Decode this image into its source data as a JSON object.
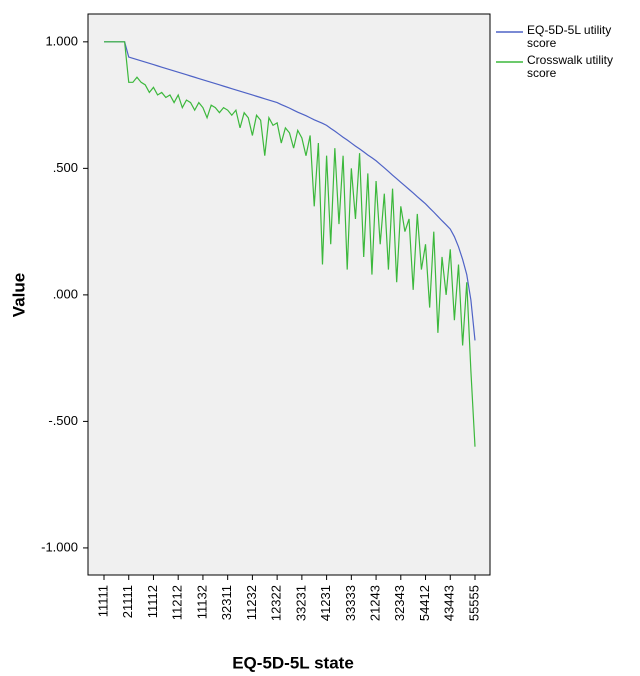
{
  "chart_data": {
    "type": "line",
    "x_label": "EQ-5D-5L state",
    "y_label": "Value",
    "categories": [
      "11111",
      null,
      null,
      null,
      null,
      null,
      "21111",
      null,
      null,
      null,
      null,
      null,
      "11112",
      null,
      null,
      null,
      null,
      null,
      "11212",
      null,
      null,
      null,
      null,
      null,
      "11132",
      null,
      null,
      null,
      null,
      null,
      "32311",
      null,
      null,
      null,
      null,
      null,
      "11232",
      null,
      null,
      null,
      null,
      null,
      "12322",
      null,
      null,
      null,
      null,
      null,
      "33231",
      null,
      null,
      null,
      null,
      null,
      "41231",
      null,
      null,
      null,
      null,
      null,
      "33333",
      null,
      null,
      null,
      null,
      null,
      "21243",
      null,
      null,
      null,
      null,
      null,
      "32343",
      null,
      null,
      null,
      null,
      null,
      "54412",
      null,
      null,
      null,
      null,
      null,
      "43443",
      null,
      null,
      null,
      null,
      null,
      "55555"
    ],
    "series": [
      {
        "name": "EQ-5D-5L utility score",
        "color": "#4f63c6",
        "values": [
          1.0,
          1.0,
          1.0,
          1.0,
          1.0,
          1.0,
          0.94,
          0.935,
          0.93,
          0.925,
          0.92,
          0.915,
          0.91,
          0.905,
          0.9,
          0.895,
          0.89,
          0.885,
          0.88,
          0.875,
          0.87,
          0.865,
          0.86,
          0.855,
          0.85,
          0.845,
          0.84,
          0.835,
          0.83,
          0.825,
          0.82,
          0.815,
          0.81,
          0.805,
          0.8,
          0.795,
          0.79,
          0.785,
          0.78,
          0.775,
          0.77,
          0.765,
          0.76,
          0.752,
          0.745,
          0.738,
          0.73,
          0.722,
          0.715,
          0.708,
          0.7,
          0.692,
          0.685,
          0.678,
          0.67,
          0.658,
          0.647,
          0.635,
          0.623,
          0.612,
          0.6,
          0.588,
          0.577,
          0.565,
          0.553,
          0.542,
          0.53,
          0.516,
          0.502,
          0.488,
          0.473,
          0.459,
          0.445,
          0.431,
          0.417,
          0.403,
          0.388,
          0.374,
          0.36,
          0.343,
          0.327,
          0.31,
          0.293,
          0.277,
          0.26,
          0.23,
          0.19,
          0.14,
          0.08,
          -0.02,
          -0.18
        ]
      },
      {
        "name": "Crosswalk utility score",
        "color": "#3cb83c",
        "values": [
          1.0,
          1.0,
          1.0,
          1.0,
          1.0,
          1.0,
          0.84,
          0.84,
          0.86,
          0.84,
          0.83,
          0.8,
          0.82,
          0.79,
          0.8,
          0.78,
          0.79,
          0.76,
          0.79,
          0.74,
          0.77,
          0.76,
          0.73,
          0.76,
          0.74,
          0.7,
          0.75,
          0.74,
          0.72,
          0.74,
          0.73,
          0.71,
          0.73,
          0.66,
          0.72,
          0.7,
          0.63,
          0.71,
          0.69,
          0.55,
          0.7,
          0.67,
          0.68,
          0.6,
          0.66,
          0.64,
          0.58,
          0.65,
          0.62,
          0.55,
          0.63,
          0.35,
          0.6,
          0.12,
          0.55,
          0.2,
          0.58,
          0.28,
          0.55,
          0.1,
          0.5,
          0.3,
          0.56,
          0.15,
          0.48,
          0.08,
          0.45,
          0.2,
          0.4,
          0.1,
          0.42,
          0.05,
          0.35,
          0.25,
          0.3,
          0.02,
          0.32,
          0.1,
          0.2,
          -0.05,
          0.25,
          -0.15,
          0.15,
          0.0,
          0.18,
          -0.1,
          0.12,
          -0.2,
          0.05,
          -0.3,
          -0.6
        ]
      }
    ],
    "ylim": [
      -1.107,
      1.11
    ],
    "yticks": [
      {
        "value": 1,
        "label": "1.000"
      },
      {
        "value": 0.5,
        "label": ".500"
      },
      {
        "value": 0,
        "label": ".000"
      },
      {
        "value": -0.5,
        "label": "-.500"
      },
      {
        "value": -1,
        "label": "-1.000"
      }
    ],
    "grid": false,
    "legend": "right"
  }
}
